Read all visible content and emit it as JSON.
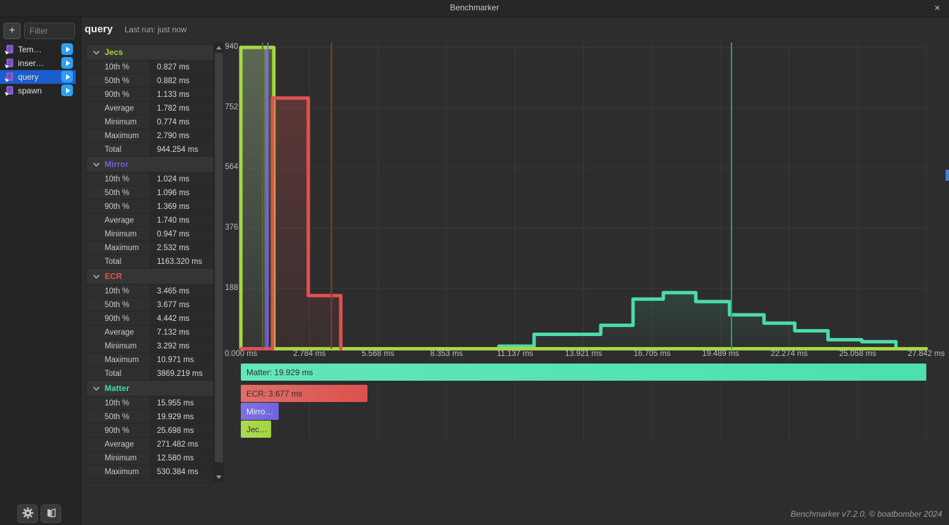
{
  "title_bar": {
    "title": "Benchmarker",
    "close_label": "×"
  },
  "sidebar": {
    "add_button_label": "+",
    "filter_placeholder": "Filter",
    "items": [
      {
        "label": "Tem…",
        "selected": false
      },
      {
        "label": "inser…",
        "selected": false
      },
      {
        "label": "query",
        "selected": true
      },
      {
        "label": "spawn",
        "selected": false
      }
    ]
  },
  "header": {
    "title": "query",
    "last_run": "Last run: just now"
  },
  "stats": {
    "sections": [
      {
        "name": "Jecs",
        "color": "#a3d636",
        "rows": [
          [
            "10th %",
            "0.827 ms"
          ],
          [
            "50th %",
            "0.882 ms"
          ],
          [
            "90th %",
            "1.133 ms"
          ],
          [
            "Average",
            "1.782 ms"
          ],
          [
            "Minimum",
            "0.774 ms"
          ],
          [
            "Maximum",
            "2.790 ms"
          ],
          [
            "Total",
            "944.254 ms"
          ]
        ]
      },
      {
        "name": "Mirror",
        "color": "#6e61d6",
        "rows": [
          [
            "10th %",
            "1.024 ms"
          ],
          [
            "50th %",
            "1.096 ms"
          ],
          [
            "90th %",
            "1.369 ms"
          ],
          [
            "Average",
            "1.740 ms"
          ],
          [
            "Minimum",
            "0.947 ms"
          ],
          [
            "Maximum",
            "2.532 ms"
          ],
          [
            "Total",
            "1163.320 ms"
          ]
        ]
      },
      {
        "name": "ECR",
        "color": "#e05252",
        "rows": [
          [
            "10th %",
            "3.465 ms"
          ],
          [
            "50th %",
            "3.677 ms"
          ],
          [
            "90th %",
            "4.442 ms"
          ],
          [
            "Average",
            "7.132 ms"
          ],
          [
            "Minimum",
            "3.292 ms"
          ],
          [
            "Maximum",
            "10.971 ms"
          ],
          [
            "Total",
            "3869.219 ms"
          ]
        ]
      },
      {
        "name": "Matter",
        "color": "#47d9a6",
        "rows": [
          [
            "10th %",
            "15.955 ms"
          ],
          [
            "50th %",
            "19.929 ms"
          ],
          [
            "90th %",
            "25.698 ms"
          ],
          [
            "Average",
            "271.482 ms"
          ],
          [
            "Minimum",
            "12.580 ms"
          ],
          [
            "Maximum",
            "530.384 ms"
          ]
        ]
      }
    ]
  },
  "chart_data": {
    "type": "line",
    "subtype": "step-histogram",
    "x_ticks": [
      "0.000 ms",
      "2.784 ms",
      "5.568 ms",
      "8.353 ms",
      "11.137 ms",
      "13.921 ms",
      "16.705 ms",
      "19.489 ms",
      "22.274 ms",
      "25.058 ms",
      "27.842 ms"
    ],
    "y_ticks": [
      "940",
      "752",
      "564",
      "376",
      "188"
    ],
    "xlim_ms": [
      0,
      27.842
    ],
    "ylim_count": [
      0,
      940
    ],
    "grid": true,
    "series": [
      {
        "name": "Matter",
        "color": "#4cdcab",
        "median_color": "#2f9a80",
        "median_ms": 19.929,
        "steps_ms_count": [
          [
            0,
            0
          ],
          [
            10.48,
            8
          ],
          [
            11.91,
            45
          ],
          [
            14.62,
            73
          ],
          [
            15.93,
            155
          ],
          [
            17.16,
            175
          ],
          [
            18.48,
            147
          ],
          [
            19.85,
            106
          ],
          [
            21.25,
            80
          ],
          [
            22.5,
            56
          ],
          [
            23.85,
            28
          ],
          [
            25.22,
            22
          ],
          [
            26.61,
            0
          ],
          [
            27.842,
            0
          ]
        ]
      },
      {
        "name": "Mirror",
        "color": "#5e55c3",
        "median_color": "#7b68ee",
        "median_ms": 1.096,
        "steps_ms_count": [
          [
            0,
            940
          ],
          [
            1.03,
            0
          ],
          [
            27.842,
            0
          ]
        ]
      },
      {
        "name": "Jecs",
        "color": "#a6d743",
        "median_color": "#5d6e22",
        "median_ms": 0.882,
        "steps_ms_count": [
          [
            0,
            940
          ],
          [
            1.34,
            0
          ],
          [
            27.842,
            0
          ]
        ]
      },
      {
        "name": "ECR",
        "color": "#e05151",
        "median_color": "#8a3838",
        "median_ms": 3.677,
        "steps_ms_count": [
          [
            0,
            0
          ],
          [
            1.29,
            782
          ],
          [
            2.74,
            166
          ],
          [
            4.06,
            0
          ]
        ]
      }
    ]
  },
  "legend": {
    "items": [
      {
        "label": "Matter: 19.929 ms",
        "value_ms": 19.929,
        "color_left": "#63e6bb",
        "color_right": "#4be0ac",
        "dark_text": true
      },
      {
        "label": "ECR: 3.677 ms",
        "value_ms": 3.677,
        "color_left": "#e26e69",
        "color_right": "#dc514d",
        "dark_text": true
      },
      {
        "label": "Mirro…",
        "value_ms": 1.096,
        "color_left": "#7e71e4",
        "color_right": "#7163de",
        "dark_text": false
      },
      {
        "label": "Jec…",
        "value_ms": 0.882,
        "color_left": "#abd952",
        "color_right": "#a2d440",
        "dark_text": true
      }
    ]
  },
  "footer": {
    "version": "Benchmarker v7.2.0, © boatbomber 2024"
  }
}
